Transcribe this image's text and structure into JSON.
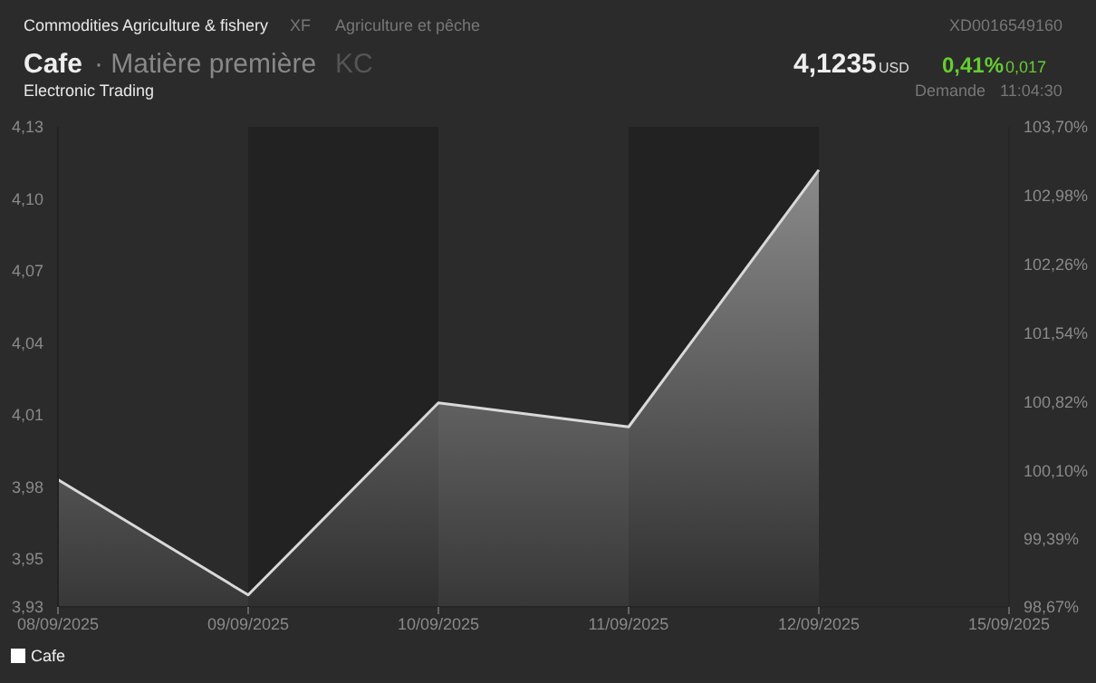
{
  "chart_data": {
    "type": "area",
    "title": "Cafe",
    "subtitle": "· Matière première",
    "annotations": [
      "Commodities Agriculture & fishery",
      "XF",
      "Agriculture et pêche",
      "XD0016549160",
      "KC",
      "4,1235",
      "USD",
      "0,41%",
      "0,017",
      "Electronic Trading",
      "Demande",
      "11:04:30"
    ],
    "categories": [
      "08/09/2025",
      "09/09/2025",
      "10/09/2025",
      "11/09/2025",
      "12/09/2025",
      "15/09/2025"
    ],
    "series": [
      {
        "name": "Cafe",
        "color": "#d9d9d9",
        "values": [
          3.983,
          3.935,
          4.015,
          4.005,
          4.112,
          null
        ]
      }
    ],
    "ylim": [
      3.93,
      4.13
    ],
    "yticks": [
      {
        "value": 3.93,
        "label": "3,93"
      },
      {
        "value": 3.95,
        "label": "3,95"
      },
      {
        "value": 3.98,
        "label": "3,98"
      },
      {
        "value": 4.01,
        "label": "4,01"
      },
      {
        "value": 4.04,
        "label": "4,04"
      },
      {
        "value": 4.07,
        "label": "4,07"
      },
      {
        "value": 4.1,
        "label": "4,10"
      },
      {
        "value": 4.13,
        "label": "4,13"
      }
    ],
    "y2lim": [
      98.67,
      103.7
    ],
    "y2ticks": [
      {
        "value": 98.67,
        "label": "98,67%"
      },
      {
        "value": 99.39,
        "label": "99,39%"
      },
      {
        "value": 100.1,
        "label": "100,10%"
      },
      {
        "value": 100.82,
        "label": "100,82%"
      },
      {
        "value": 101.54,
        "label": "101,54%"
      },
      {
        "value": 102.26,
        "label": "102,26%"
      },
      {
        "value": 102.98,
        "label": "102,98%"
      },
      {
        "value": 103.7,
        "label": "103,70%"
      }
    ],
    "bands": [
      {
        "axis": "x",
        "from": "09/09/2025",
        "to": "10/09/2025",
        "color": "#222222"
      },
      {
        "axis": "x",
        "from": "11/09/2025",
        "to": "12/09/2025",
        "color": "#222222"
      }
    ],
    "legend": "bottom left"
  }
}
